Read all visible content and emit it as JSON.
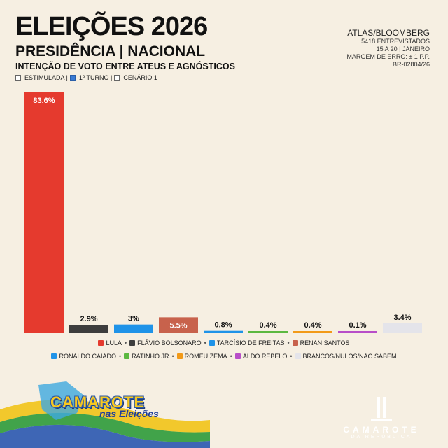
{
  "header": {
    "title": "ELEIÇÕES 2026",
    "subtitle": "PRESIDÊNCIA | NACIONAL",
    "subtitle2": "INTENÇÃO DE VOTO ENTRE ATEUS E AGNÓSTICOS",
    "tag_stimulated": "ESTIMULADA |",
    "tag_round": "1º TURNO |",
    "tag_scenario": "CENÁRIO 1"
  },
  "source": {
    "name": "ATLAS/BLOOMBERG",
    "line1": "5418 ENTREVISTADOS",
    "line2": "15 A 20 | JANEIRO",
    "line3": "MARGEM DE ERRO: ± 1 P.P.",
    "line4": "BR-02804/26"
  },
  "chart_data": {
    "type": "bar",
    "categories": [
      "LULA",
      "FLÁVIO BOLSONARO",
      "TARCÍSIO DE FREITAS",
      "RENAN SANTOS",
      "RONALDO CAIADO",
      "RATINHO JR",
      "ROMEU ZEMA",
      "ALDO REBELO",
      "BRANCOS/NULOS/NÃO SABEM"
    ],
    "values": [
      83.6,
      2.9,
      3,
      5.5,
      0.8,
      0.4,
      0.4,
      0.1,
      3.4
    ],
    "labels": [
      "83.6%",
      "2.9%",
      "3%",
      "5.5%",
      "0.8%",
      "0.4%",
      "0.4%",
      "0.1%",
      "3.4%"
    ],
    "colors": [
      "#e53a2e",
      "#3d3d3d",
      "#1f93e8",
      "#c8624c",
      "#1f93e8",
      "#5cb840",
      "#f29a18",
      "#b84ec8",
      "#e4e4ea"
    ],
    "label_colors": [
      "#ffffff",
      "#111111",
      "#111111",
      "#ffffff",
      "#111111",
      "#111111",
      "#111111",
      "#111111",
      "#111111"
    ],
    "label_inside": [
      true,
      false,
      false,
      true,
      false,
      false,
      false,
      false,
      false
    ],
    "ylim": [
      0,
      83.6
    ]
  },
  "legend": {
    "row1": [
      {
        "label": "LULA",
        "color": "#e53a2e"
      },
      {
        "label": "FLÁVIO BOLSONARO",
        "color": "#3d3d3d"
      },
      {
        "label": "TARCÍSIO DE FREITAS",
        "color": "#1f93e8"
      },
      {
        "label": "RENAN SANTOS",
        "color": "#c8624c"
      }
    ],
    "row2": [
      {
        "label": "RONALDO CAIADO",
        "color": "#1f93e8"
      },
      {
        "label": "RATINHO JR",
        "color": "#5cb840"
      },
      {
        "label": "ROMEU ZEMA",
        "color": "#f29a18"
      },
      {
        "label": "ALDO REBELO",
        "color": "#b84ec8"
      },
      {
        "label": "BRANCOS/NULOS/NÃO SABEM",
        "color": "#e4e4ea"
      }
    ],
    "separator": "•"
  },
  "branding": {
    "left_title": "CAMAROTE",
    "left_sub": "nas Eleições",
    "right_name": "CAMAROTE",
    "right_tag": "DA REPÚBLICA"
  }
}
